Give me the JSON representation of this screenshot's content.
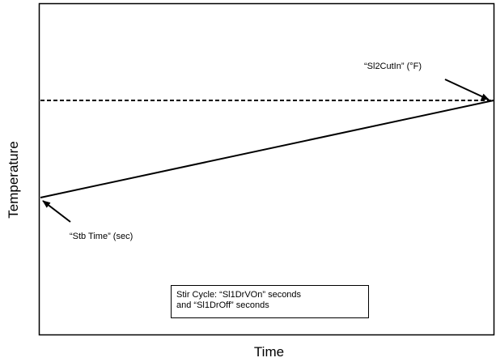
{
  "axes": {
    "x_title": "Time",
    "y_title": "Temperature"
  },
  "annotations": {
    "setpoint": "“Sl2CutIn” (°F)",
    "start": "“Stb Time” (sec)"
  },
  "stir_cycle": {
    "line1": "Stir Cycle: “Sl1DrVOn” seconds",
    "line2": "and “Sl1DrOff” seconds"
  },
  "lines": {
    "setpoint_style": "dashed",
    "ramp_style": "solid",
    "color": "#000000"
  }
}
